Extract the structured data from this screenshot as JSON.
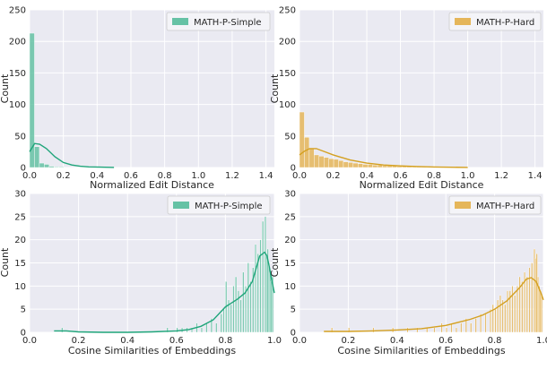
{
  "colors": {
    "simple": "#66c2a5",
    "simple_line": "#1fa57a",
    "hard": "#e5b65a",
    "hard_line": "#d4a020"
  },
  "chart_data": [
    {
      "type": "bar",
      "series_name": "MATH-P-Simple",
      "xlabel": "Normalized Edit Distance",
      "ylabel": "Count",
      "xlim": [
        0,
        1.45
      ],
      "ylim": [
        0,
        250
      ],
      "xticks": [
        0.0,
        0.2,
        0.4,
        0.6,
        0.8,
        1.0,
        1.2,
        1.4
      ],
      "xtick_labels": [
        "0.0",
        "0.2",
        "0.4",
        "0.6",
        "0.8",
        "1.0",
        "1.2",
        "1.4"
      ],
      "yticks": [
        0,
        50,
        100,
        150,
        200,
        250
      ],
      "ytick_labels": [
        "0",
        "50",
        "100",
        "150",
        "200",
        "250"
      ],
      "bin_width": 0.029,
      "bins": [
        0.0,
        0.029,
        0.058,
        0.087,
        0.116,
        0.145,
        0.174
      ],
      "values": [
        213,
        33,
        7,
        5,
        2,
        1,
        1
      ],
      "kde": [
        [
          0,
          25
        ],
        [
          0.03,
          38
        ],
        [
          0.06,
          37
        ],
        [
          0.1,
          30
        ],
        [
          0.15,
          17
        ],
        [
          0.2,
          8
        ],
        [
          0.25,
          4
        ],
        [
          0.3,
          2
        ],
        [
          0.35,
          1
        ],
        [
          0.42,
          0.5
        ],
        [
          0.5,
          0.2
        ]
      ],
      "legend_position": "top-right",
      "color": "simple"
    },
    {
      "type": "bar",
      "series_name": "MATH-P-Hard",
      "xlabel": "Normalized Edit Distance",
      "ylabel": "Count",
      "xlim": [
        0,
        1.45
      ],
      "ylim": [
        0,
        250
      ],
      "xticks": [
        0.0,
        0.2,
        0.4,
        0.6,
        0.8,
        1.0,
        1.2,
        1.4
      ],
      "xtick_labels": [
        "0.0",
        "0.2",
        "0.4",
        "0.6",
        "0.8",
        "1.0",
        "1.2",
        "1.4"
      ],
      "yticks": [
        0,
        50,
        100,
        150,
        200,
        250
      ],
      "ytick_labels": [
        "0",
        "50",
        "100",
        "150",
        "200",
        "250"
      ],
      "bin_width": 0.029,
      "bins": [
        0.0,
        0.029,
        0.058,
        0.087,
        0.116,
        0.145,
        0.174,
        0.203,
        0.232,
        0.261,
        0.29,
        0.319,
        0.348,
        0.377,
        0.406,
        0.435,
        0.464,
        0.493,
        0.522,
        0.551,
        0.58,
        0.609,
        0.638,
        0.667,
        0.696,
        0.725
      ],
      "values": [
        88,
        48,
        30,
        20,
        18,
        16,
        14,
        13,
        11,
        9,
        8,
        7,
        6,
        5,
        5,
        4,
        4,
        3,
        3,
        3,
        2,
        2,
        2,
        1,
        1,
        1
      ],
      "kde": [
        [
          0,
          20
        ],
        [
          0.03,
          26
        ],
        [
          0.06,
          30
        ],
        [
          0.1,
          30
        ],
        [
          0.15,
          25
        ],
        [
          0.2,
          20
        ],
        [
          0.3,
          12
        ],
        [
          0.4,
          7
        ],
        [
          0.5,
          4
        ],
        [
          0.6,
          2.5
        ],
        [
          0.7,
          1.5
        ],
        [
          0.8,
          0.8
        ],
        [
          0.9,
          0.4
        ],
        [
          1.0,
          0.2
        ]
      ],
      "legend_position": "top-right",
      "color": "hard"
    },
    {
      "type": "bar",
      "series_name": "MATH-P-Simple",
      "xlabel": "Cosine Similarities of Embeddings",
      "ylabel": "Count",
      "xlim": [
        0,
        1.0
      ],
      "ylim": [
        0,
        30
      ],
      "xticks": [
        0.0,
        0.2,
        0.4,
        0.6,
        0.8,
        1.0
      ],
      "xtick_labels": [
        "0.0",
        "0.2",
        "0.4",
        "0.6",
        "0.8",
        "1.0"
      ],
      "yticks": [
        0,
        5,
        10,
        15,
        20,
        25,
        30
      ],
      "ytick_labels": [
        "0",
        "5",
        "10",
        "15",
        "20",
        "25",
        "30"
      ],
      "bin_width": 0.006,
      "bins": [
        0.13,
        0.56,
        0.6,
        0.62,
        0.64,
        0.66,
        0.68,
        0.7,
        0.72,
        0.74,
        0.76,
        0.78,
        0.79,
        0.8,
        0.81,
        0.82,
        0.83,
        0.84,
        0.85,
        0.86,
        0.87,
        0.88,
        0.89,
        0.9,
        0.91,
        0.92,
        0.93,
        0.94,
        0.95,
        0.96,
        0.965,
        0.97,
        0.975,
        0.98,
        0.985,
        0.99
      ],
      "values": [
        1,
        1,
        1,
        1,
        1,
        1,
        2,
        1,
        2,
        3,
        2,
        4,
        5,
        11,
        7,
        6,
        10,
        12,
        9,
        7,
        13,
        10,
        15,
        11,
        14,
        19,
        17,
        20,
        24,
        25,
        17,
        18,
        15,
        13,
        11,
        12
      ],
      "kde": [
        [
          0.1,
          0.3
        ],
        [
          0.15,
          0.3
        ],
        [
          0.2,
          0.1
        ],
        [
          0.3,
          0
        ],
        [
          0.4,
          0
        ],
        [
          0.5,
          0.1
        ],
        [
          0.6,
          0.3
        ],
        [
          0.65,
          0.6
        ],
        [
          0.7,
          1.3
        ],
        [
          0.75,
          2.7
        ],
        [
          0.8,
          5.5
        ],
        [
          0.85,
          7.2
        ],
        [
          0.88,
          8.5
        ],
        [
          0.91,
          11
        ],
        [
          0.94,
          16.5
        ],
        [
          0.96,
          17.3
        ],
        [
          0.97,
          16.5
        ],
        [
          0.98,
          14
        ],
        [
          0.99,
          11
        ],
        [
          1.0,
          8.5
        ]
      ],
      "legend_position": "top-right",
      "color": "simple"
    },
    {
      "type": "bar",
      "series_name": "MATH-P-Hard",
      "xlabel": "Cosine Similarities of Embeddings",
      "ylabel": "Count",
      "xlim": [
        0,
        1.0
      ],
      "ylim": [
        0,
        30
      ],
      "xticks": [
        0.0,
        0.2,
        0.4,
        0.6,
        0.8,
        1.0
      ],
      "xtick_labels": [
        "0.0",
        "0.2",
        "0.4",
        "0.6",
        "0.8",
        "1.0"
      ],
      "yticks": [
        0,
        5,
        10,
        15,
        20,
        25,
        30
      ],
      "ytick_labels": [
        "0",
        "5",
        "10",
        "15",
        "20",
        "25",
        "30"
      ],
      "bin_width": 0.006,
      "bins": [
        0.13,
        0.2,
        0.3,
        0.38,
        0.44,
        0.48,
        0.52,
        0.55,
        0.58,
        0.6,
        0.62,
        0.64,
        0.66,
        0.68,
        0.7,
        0.72,
        0.74,
        0.76,
        0.78,
        0.79,
        0.8,
        0.81,
        0.82,
        0.83,
        0.84,
        0.85,
        0.86,
        0.87,
        0.88,
        0.89,
        0.9,
        0.91,
        0.92,
        0.93,
        0.94,
        0.95,
        0.96,
        0.965,
        0.97,
        0.975,
        0.98,
        0.985,
        0.99
      ],
      "values": [
        1,
        1,
        1,
        1,
        1,
        1,
        1,
        1,
        2,
        1,
        2,
        1,
        2,
        3,
        2,
        3,
        4,
        4,
        5,
        6,
        5,
        7,
        8,
        7,
        6,
        9,
        9,
        10,
        8,
        10,
        12,
        11,
        13,
        12,
        14,
        15,
        18,
        16,
        17,
        12,
        10,
        9,
        8
      ],
      "kde": [
        [
          0.1,
          0.2
        ],
        [
          0.2,
          0.2
        ],
        [
          0.3,
          0.3
        ],
        [
          0.4,
          0.5
        ],
        [
          0.5,
          0.8
        ],
        [
          0.6,
          1.5
        ],
        [
          0.7,
          2.8
        ],
        [
          0.75,
          3.7
        ],
        [
          0.8,
          5
        ],
        [
          0.85,
          6.8
        ],
        [
          0.9,
          9.5
        ],
        [
          0.93,
          11.5
        ],
        [
          0.95,
          11.8
        ],
        [
          0.97,
          11
        ],
        [
          0.99,
          8.5
        ],
        [
          1.0,
          7
        ]
      ],
      "legend_position": "top-right",
      "color": "hard"
    }
  ]
}
